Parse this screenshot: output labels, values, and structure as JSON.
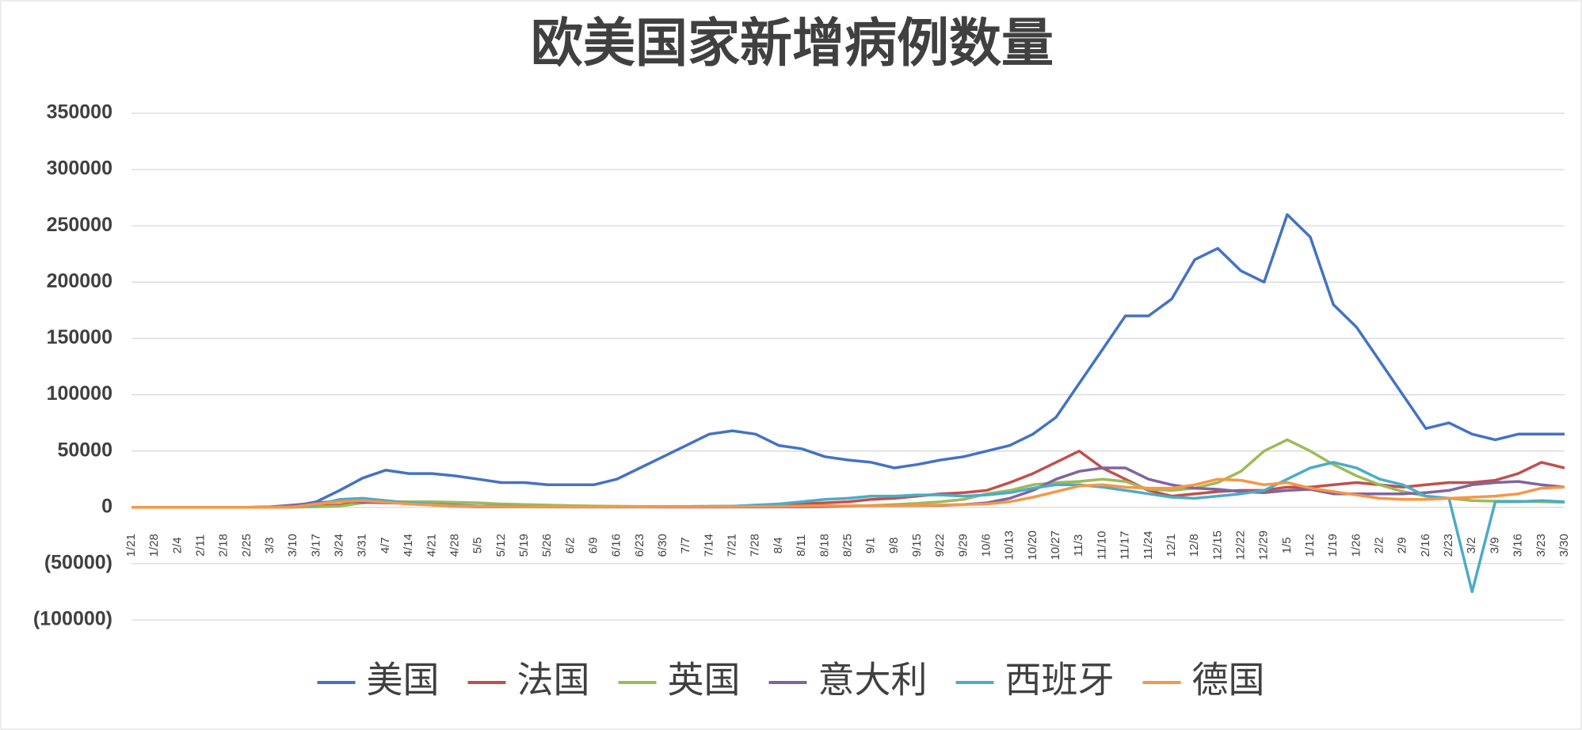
{
  "chart_data": {
    "type": "line",
    "title": "欧美国家新增病例数量",
    "categories": [
      "1/21",
      "1/28",
      "2/4",
      "2/11",
      "2/18",
      "2/25",
      "3/3",
      "3/10",
      "3/17",
      "3/24",
      "3/31",
      "4/7",
      "4/14",
      "4/21",
      "4/28",
      "5/5",
      "5/12",
      "5/19",
      "5/26",
      "6/2",
      "6/9",
      "6/16",
      "6/23",
      "6/30",
      "7/7",
      "7/14",
      "7/21",
      "7/28",
      "8/4",
      "8/11",
      "8/18",
      "8/25",
      "9/1",
      "9/8",
      "9/15",
      "9/22",
      "9/29",
      "10/6",
      "10/13",
      "10/20",
      "10/27",
      "11/3",
      "11/10",
      "11/17",
      "11/24",
      "12/1",
      "12/8",
      "12/15",
      "12/22",
      "12/29",
      "1/5",
      "1/12",
      "1/19",
      "1/26",
      "2/2",
      "2/9",
      "2/16",
      "2/23",
      "3/2",
      "3/9",
      "3/16",
      "3/23",
      "3/30"
    ],
    "series": [
      {
        "name": "美国",
        "color": "#4472c4",
        "values": [
          0,
          0,
          0,
          0,
          0,
          0,
          200,
          1000,
          5000,
          15000,
          26000,
          33000,
          30000,
          30000,
          28000,
          25000,
          22000,
          22000,
          20000,
          20000,
          20000,
          25000,
          35000,
          45000,
          55000,
          65000,
          68000,
          65000,
          55000,
          52000,
          45000,
          42000,
          40000,
          35000,
          38000,
          42000,
          45000,
          50000,
          55000,
          65000,
          80000,
          110000,
          140000,
          170000,
          170000,
          185000,
          220000,
          230000,
          210000,
          200000,
          260000,
          240000,
          180000,
          160000,
          130000,
          100000,
          70000,
          75000,
          65000,
          60000,
          65000,
          65000,
          65000
        ]
      },
      {
        "name": "法国",
        "color": "#c0504d",
        "values": [
          0,
          0,
          0,
          0,
          0,
          0,
          0,
          200,
          1000,
          2000,
          5000,
          5000,
          3000,
          2000,
          1000,
          500,
          500,
          500,
          500,
          500,
          500,
          500,
          500,
          500,
          500,
          800,
          1000,
          1500,
          2000,
          3000,
          4000,
          5000,
          7000,
          8000,
          10000,
          12000,
          13000,
          15000,
          22000,
          30000,
          40000,
          50000,
          35000,
          25000,
          15000,
          10000,
          12000,
          14000,
          15000,
          15000,
          18000,
          18000,
          20000,
          22000,
          20000,
          18000,
          20000,
          22000,
          22000,
          24000,
          30000,
          40000,
          35000
        ]
      },
      {
        "name": "英国",
        "color": "#9bbb59",
        "values": [
          0,
          0,
          0,
          0,
          0,
          0,
          0,
          100,
          500,
          1000,
          4000,
          5000,
          5000,
          5000,
          4500,
          4000,
          3000,
          2500,
          2000,
          1500,
          1200,
          1000,
          800,
          800,
          800,
          800,
          800,
          800,
          900,
          1000,
          1100,
          1200,
          1500,
          2500,
          3500,
          5000,
          7000,
          12000,
          15000,
          20000,
          22000,
          23000,
          25000,
          23000,
          16000,
          15000,
          17000,
          22000,
          32000,
          50000,
          60000,
          50000,
          38000,
          28000,
          20000,
          14000,
          10000,
          8000,
          6000,
          5500,
          5500,
          5000,
          4500
        ]
      },
      {
        "name": "意大利",
        "color": "#8064a2",
        "values": [
          0,
          0,
          0,
          0,
          0,
          0,
          500,
          2000,
          4000,
          5500,
          4500,
          4000,
          3500,
          3000,
          2000,
          1200,
          900,
          600,
          400,
          300,
          300,
          300,
          300,
          200,
          200,
          200,
          250,
          300,
          400,
          500,
          600,
          1200,
          1500,
          1500,
          1600,
          1700,
          2500,
          4000,
          8000,
          15000,
          25000,
          32000,
          35000,
          35000,
          25000,
          20000,
          17000,
          16000,
          14000,
          13000,
          15000,
          16000,
          12000,
          12000,
          12000,
          12000,
          13000,
          15000,
          20000,
          22000,
          23000,
          20000,
          18000
        ]
      },
      {
        "name": "西班牙",
        "color": "#4bacc6",
        "values": [
          0,
          0,
          0,
          0,
          0,
          0,
          100,
          500,
          2000,
          7000,
          8000,
          6000,
          4000,
          3000,
          1500,
          1000,
          500,
          400,
          300,
          300,
          300,
          300,
          400,
          500,
          700,
          900,
          1000,
          2000,
          3000,
          5000,
          7000,
          8000,
          10000,
          10000,
          11000,
          11000,
          10000,
          11000,
          13000,
          17000,
          20000,
          20000,
          18000,
          15000,
          12000,
          9000,
          8000,
          10000,
          12000,
          15000,
          25000,
          35000,
          40000,
          35000,
          25000,
          20000,
          10000,
          8000,
          -75000,
          5000,
          5000,
          6000,
          5000
        ]
      },
      {
        "name": "德国",
        "color": "#f79646",
        "values": [
          0,
          0,
          0,
          0,
          0,
          0,
          50,
          300,
          3000,
          5000,
          6000,
          4500,
          3000,
          2000,
          1200,
          800,
          600,
          500,
          500,
          400,
          400,
          500,
          500,
          500,
          500,
          500,
          600,
          700,
          800,
          1200,
          1500,
          1300,
          1300,
          1500,
          1800,
          2000,
          2500,
          3000,
          5000,
          9000,
          14000,
          19000,
          20000,
          18000,
          17000,
          17000,
          20000,
          25000,
          24000,
          20000,
          22000,
          17000,
          14000,
          11000,
          8000,
          7000,
          7000,
          8000,
          9000,
          10000,
          12000,
          17000,
          18000
        ]
      }
    ],
    "ylim": [
      -100000,
      350000
    ],
    "yticks": [
      {
        "value": -100000,
        "label": "(100000)"
      },
      {
        "value": -50000,
        "label": "(50000)"
      },
      0,
      50000,
      100000,
      150000,
      200000,
      250000,
      300000,
      350000
    ],
    "negative_tick_color": "#ff0000",
    "grid": true,
    "legend": "bottom"
  }
}
